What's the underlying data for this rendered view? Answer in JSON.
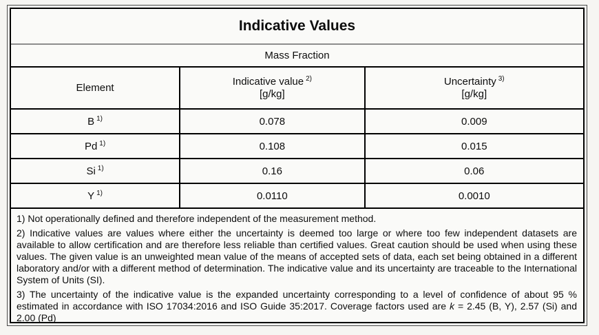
{
  "document": {
    "title": "Indicative Values",
    "subtitle": "Mass Fraction"
  },
  "table": {
    "columns": {
      "element": {
        "label": "Element"
      },
      "value": {
        "label": "Indicative value",
        "footnote_ref": "2)",
        "unit": "[g/kg]"
      },
      "uncertainty": {
        "label": "Uncertainty",
        "footnote_ref": "3)",
        "unit": "[g/kg]"
      }
    },
    "rows": [
      {
        "element": "B",
        "footnote_ref": "1)",
        "value": "0.078",
        "uncertainty": "0.009"
      },
      {
        "element": "Pd",
        "footnote_ref": "1)",
        "value": "0.108",
        "uncertainty": "0.015"
      },
      {
        "element": "Si",
        "footnote_ref": "1)",
        "value": "0.16",
        "uncertainty": "0.06"
      },
      {
        "element": "Y",
        "footnote_ref": "1)",
        "value": "0.0110",
        "uncertainty": "0.0010"
      }
    ]
  },
  "footnotes": {
    "note1": "1) Not operationally defined and therefore independent of the measurement method.",
    "note2": "2) Indicative values are values where either the uncertainty is deemed too large or where too few independent datasets are available to allow certification and are therefore less reliable than certified values. Great caution should be used when using these values. The given value is an unweighted mean value of the means of accepted sets of data, each set being obtained in a different laboratory and/or with a different method of determination. The indicative value and its uncertainty are traceable to the International System of Units (SI).",
    "note3_before": "3) The uncertainty of the indicative value is the expanded uncertainty corresponding to a level of confidence of about 95 % estimated in accordance with ISO 17034:2016 and ISO Guide 35:2017. Coverage factors used are ",
    "note3_k": "k",
    "note3_after": " = 2.45 (B, Y), 2.57 (Si) and 2.00 (Pd)"
  },
  "colors": {
    "page_background": "#f6f5f2",
    "cell_background": "#fafaf8",
    "border_black": "#000000",
    "title_divider_gray": "#8c8c8c",
    "text": "#0d0d0d"
  }
}
